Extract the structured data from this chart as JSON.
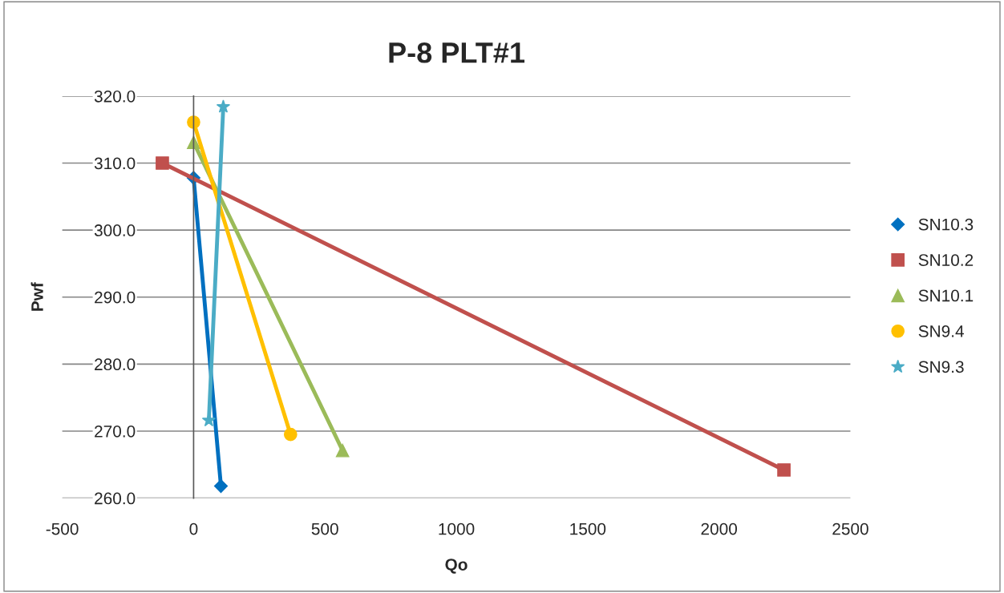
{
  "chart_data": {
    "type": "line",
    "title": "P-8 PLT#1",
    "xlabel": "Qo",
    "ylabel": "Pwf",
    "xlim": [
      -500,
      2500
    ],
    "xticks": [
      -500,
      0,
      500,
      1000,
      1500,
      2000,
      2500
    ],
    "ylim": [
      260,
      320
    ],
    "yticks": [
      {
        "value": 260,
        "label": "260.0"
      },
      {
        "value": 270,
        "label": "270.0"
      },
      {
        "value": 280,
        "label": "280.0"
      },
      {
        "value": 290,
        "label": "290.0"
      },
      {
        "value": 300,
        "label": "300.0"
      },
      {
        "value": 310,
        "label": "310.0"
      },
      {
        "value": 320,
        "label": "320.0"
      }
    ],
    "grid": "y",
    "legend": "right",
    "series": [
      {
        "name": "SN10.3",
        "color": "#0070c0",
        "marker": "diamond",
        "x": [
          0,
          104
        ],
        "values": [
          307.8,
          261.8
        ]
      },
      {
        "name": "SN10.2",
        "color": "#c0504d",
        "marker": "square",
        "x": [
          -119,
          2247
        ],
        "values": [
          310.0,
          264.2
        ]
      },
      {
        "name": "SN10.1",
        "color": "#9bbb59",
        "marker": "triangle",
        "x": [
          0,
          567
        ],
        "values": [
          313.1,
          267.1
        ]
      },
      {
        "name": "SN9.4",
        "color": "#ffc000",
        "marker": "circle",
        "x": [
          0,
          369
        ],
        "values": [
          316.1,
          269.5
        ]
      },
      {
        "name": "SN9.3",
        "color": "#4bacc6",
        "marker": "star",
        "x": [
          58,
          113
        ],
        "values": [
          271.6,
          318.4
        ]
      }
    ]
  }
}
